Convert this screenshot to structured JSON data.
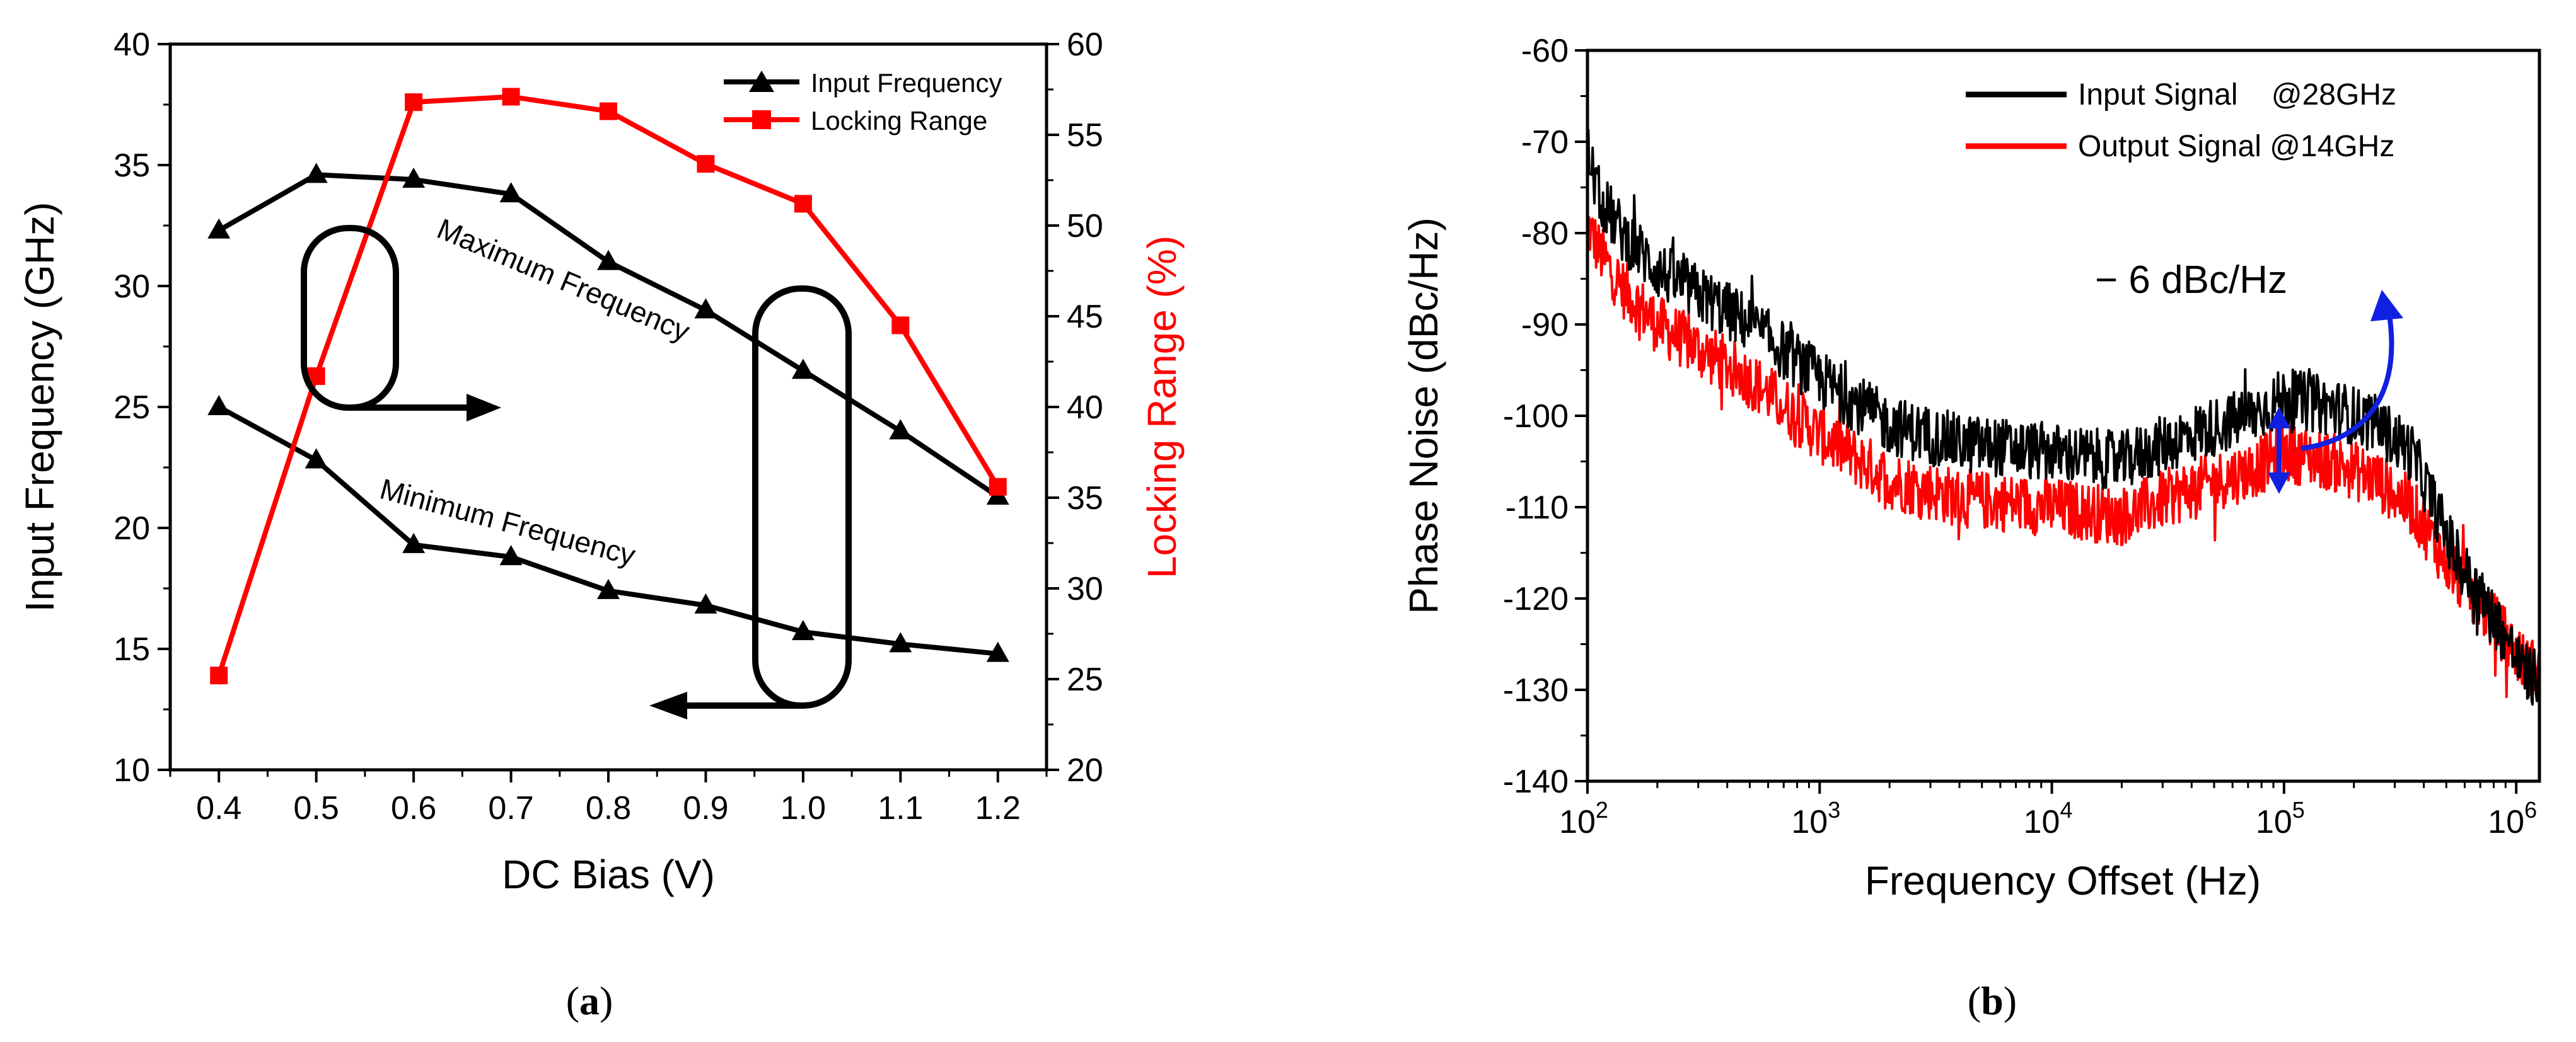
{
  "chart_data": [
    {
      "id": "a",
      "type": "line",
      "caption_label": "a",
      "xlabel": "DC Bias (V)",
      "ylabel": "Input Frequency (GHz)",
      "y2label": "Locking Range (%)",
      "xlim": [
        0.35,
        1.25
      ],
      "ylim": [
        10,
        40
      ],
      "y2lim": [
        20,
        60
      ],
      "xticks": [
        "0.4",
        "0.5",
        "0.6",
        "0.7",
        "0.8",
        "0.9",
        "1.0",
        "1.1",
        "1.2"
      ],
      "yticks": [
        "10",
        "15",
        "20",
        "25",
        "30",
        "35",
        "40"
      ],
      "y2ticks": [
        "20",
        "25",
        "30",
        "35",
        "40",
        "45",
        "50",
        "55",
        "60"
      ],
      "x": [
        0.4,
        0.5,
        0.6,
        0.7,
        0.8,
        0.9,
        1.0,
        1.1,
        1.2
      ],
      "series": [
        {
          "name": "Input Frequency",
          "role": "max",
          "color": "#000000",
          "marker": "triangle",
          "axis": "left",
          "values": [
            32.3,
            34.6,
            34.4,
            33.8,
            31.0,
            29.0,
            26.5,
            24.0,
            21.3
          ]
        },
        {
          "name": "Input Frequency",
          "role": "min",
          "color": "#000000",
          "marker": "triangle",
          "axis": "left",
          "values": [
            25.0,
            22.8,
            19.3,
            18.8,
            17.4,
            16.8,
            15.7,
            15.2,
            14.8
          ]
        },
        {
          "name": "Locking Range",
          "color": "#ff0000",
          "marker": "square",
          "axis": "right",
          "values": [
            25.2,
            41.7,
            56.8,
            57.1,
            56.3,
            53.4,
            51.2,
            44.5,
            35.6
          ]
        }
      ],
      "legend": [
        "Input Frequency",
        "Locking Range"
      ],
      "legend_position": "top-right",
      "annotations": [
        "Maximum Frequency",
        "Minimum Frequency"
      ]
    },
    {
      "id": "b",
      "type": "line",
      "caption_label": "b",
      "xlabel": "Frequency Offset (Hz)",
      "ylabel": "Phase Noise (dBc/Hz)",
      "xscale": "log",
      "xlim_log10": [
        2,
        6.1
      ],
      "ylim": [
        -140,
        -60
      ],
      "xticks": [
        {
          "base": "10",
          "exp": "2"
        },
        {
          "base": "10",
          "exp": "3"
        },
        {
          "base": "10",
          "exp": "4"
        },
        {
          "base": "10",
          "exp": "5"
        },
        {
          "base": "10",
          "exp": "6"
        }
      ],
      "yticks": [
        "-140",
        "-130",
        "-120",
        "-110",
        "-100",
        "-90",
        "-80",
        "-70",
        "-60"
      ],
      "series": [
        {
          "name": "Input Signal    @28GHz",
          "color": "#000000",
          "x_log10": [
            2.0,
            2.05,
            2.15,
            2.3,
            2.5,
            2.7,
            3.0,
            3.3,
            3.6,
            4.0,
            4.3,
            4.6,
            4.85,
            5.0,
            5.2,
            5.4,
            5.55,
            5.65,
            5.75,
            5.85,
            5.95,
            6.03,
            6.1
          ],
          "values": [
            -71,
            -76,
            -80,
            -84,
            -87,
            -90,
            -96,
            -101,
            -103,
            -104,
            -105,
            -102,
            -100,
            -98,
            -99,
            -101,
            -104,
            -110,
            -116,
            -120,
            -124,
            -128,
            -129
          ]
        },
        {
          "name": "Output Signal @14GHz",
          "color": "#ff0000",
          "x_log10": [
            2.0,
            2.05,
            2.15,
            2.3,
            2.5,
            2.7,
            3.0,
            3.3,
            3.6,
            4.0,
            4.3,
            4.6,
            4.85,
            5.0,
            5.2,
            5.4,
            5.55,
            5.65,
            5.75,
            5.85,
            5.95,
            6.03,
            6.1
          ],
          "values": [
            -79,
            -82,
            -86,
            -90,
            -93,
            -96,
            -102,
            -107,
            -109,
            -110,
            -111,
            -108,
            -106,
            -104,
            -105,
            -107,
            -110,
            -114,
            -118,
            -121,
            -124,
            -127,
            -128
          ]
        }
      ],
      "legend_position": "top-right",
      "annotations": [
        "− 6 dBc/Hz"
      ]
    }
  ]
}
